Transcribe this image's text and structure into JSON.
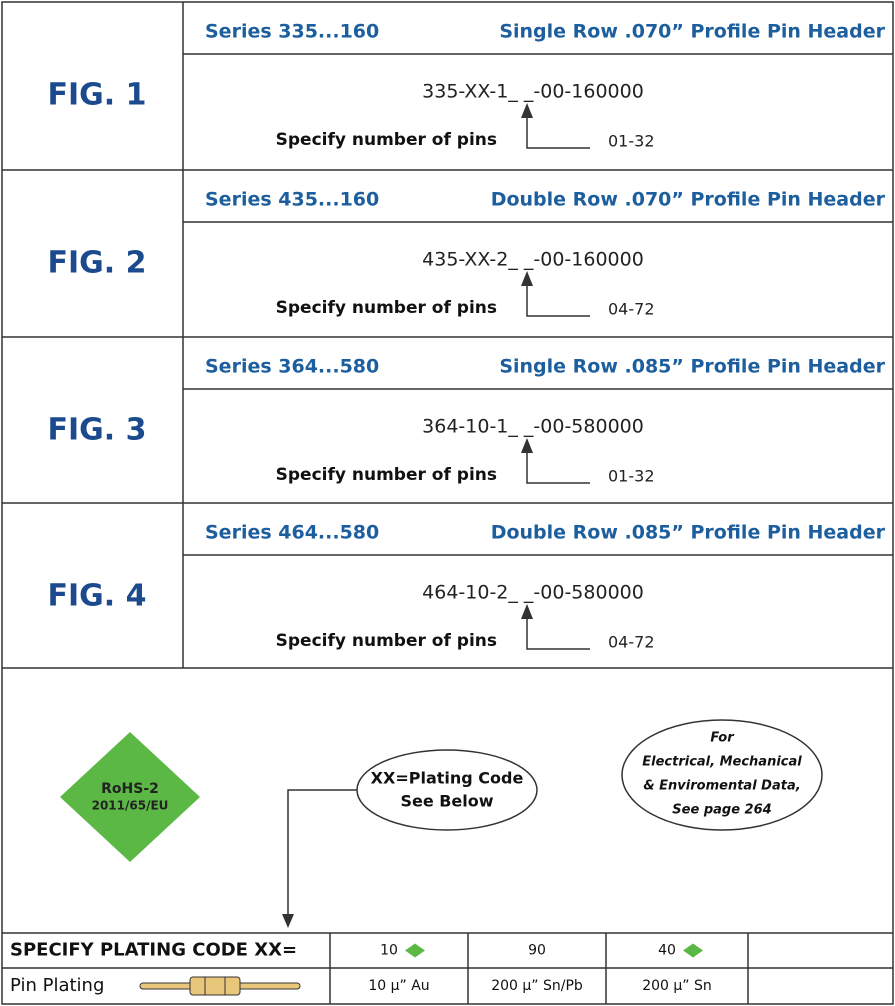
{
  "figures": [
    {
      "label": "FIG. 1",
      "series": "Series 335...160",
      "title": "Single Row .070” Profile Pin Header",
      "part_number": "335-XX-1_ _-00-160000",
      "specify": "Specify number of pins",
      "range": "01-32"
    },
    {
      "label": "FIG. 2",
      "series": "Series 435...160",
      "title": "Double Row .070” Profile Pin Header",
      "part_number": "435-XX-2_ _-00-160000",
      "specify": "Specify number of pins",
      "range": "04-72"
    },
    {
      "label": "FIG. 3",
      "series": "Series 364...580",
      "title": "Single Row .085” Profile Pin Header",
      "part_number": "364-10-1_ _-00-580000",
      "specify": "Specify number of pins",
      "range": "01-32"
    },
    {
      "label": "FIG. 4",
      "series": "Series 464...580",
      "title": "Double Row .085” Profile Pin Header",
      "part_number": "464-10-2_ _-00-580000",
      "specify": "Specify number of pins",
      "range": "04-72"
    }
  ],
  "rohs": {
    "line1": "RoHS-2",
    "line2": "2011/65/EU"
  },
  "callout": {
    "line1": "XX=Plating Code",
    "line2": "See Below"
  },
  "note": {
    "lines": [
      "For",
      "Electrical, Mechanical",
      "& Enviromental Data,",
      "See page 264"
    ]
  },
  "table": {
    "rows": [
      [
        "SPECIFY PLATING CODE XX=",
        "10",
        "90",
        "40"
      ],
      [
        "Pin Plating",
        "10 μ” Au",
        "200 μ” Sn/Pb",
        "200 μ” Sn"
      ]
    ]
  }
}
